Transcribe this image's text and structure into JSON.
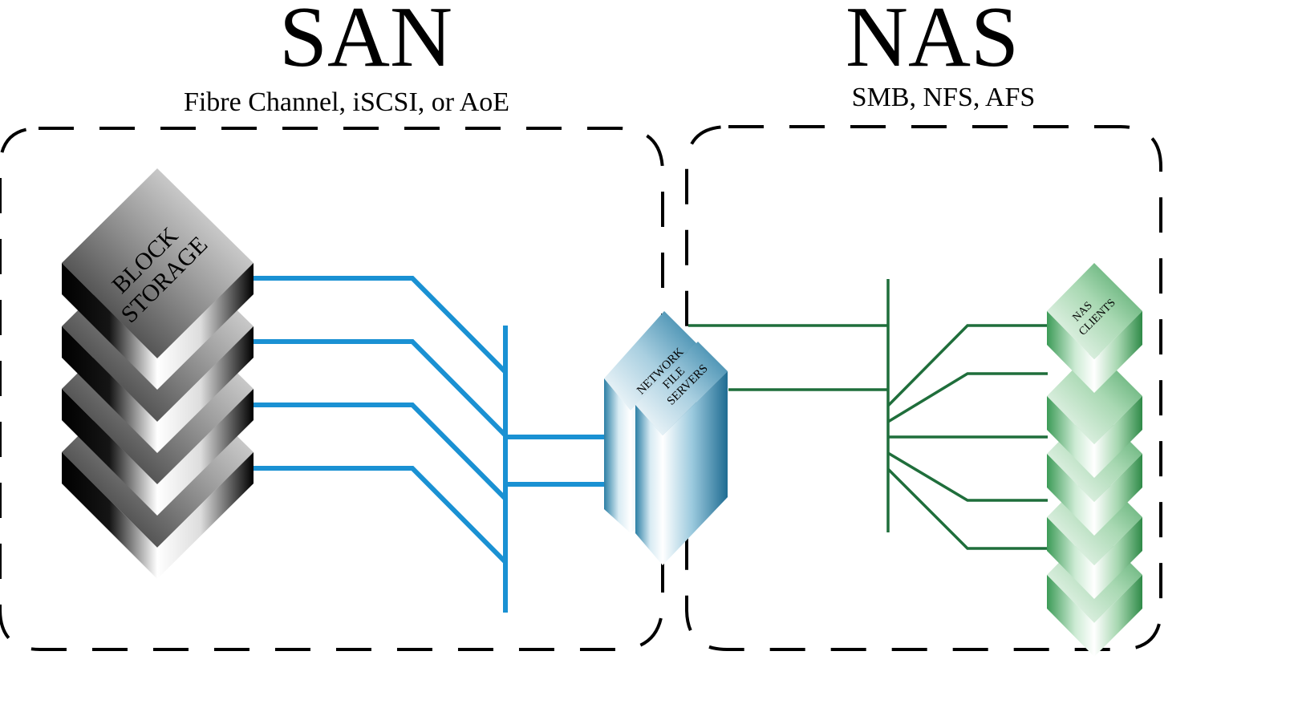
{
  "san": {
    "title": "SAN",
    "subtitle": "Fibre Channel, iSCSI, or AoE",
    "storage_label_line1": "BLOCK",
    "storage_label_line2": "STORAGE"
  },
  "nas": {
    "title": "NAS",
    "subtitle": "SMB, NFS, AFS",
    "clients_label_line1": "NAS",
    "clients_label_line2": "CLIENTS"
  },
  "file_servers": {
    "label_line1": "NETWORK",
    "label_line2": "FILE",
    "label_line3": "SERVERS"
  },
  "colors": {
    "san_link": "#1a91d3",
    "nas_link": "#1f6e3b",
    "server_tint": "#2c7fa5",
    "client_tint": "#3c9b57"
  }
}
